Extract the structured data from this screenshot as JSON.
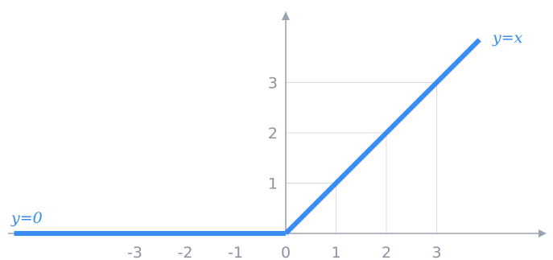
{
  "chart_data": {
    "type": "line",
    "x_ticks": [
      -3,
      -2,
      -1,
      0,
      1,
      2,
      3
    ],
    "x_tick_labels": [
      "-3",
      "-2",
      "-1",
      "0",
      "1",
      "2",
      "3"
    ],
    "y_ticks": [
      1,
      2,
      3
    ],
    "y_tick_labels": [
      "1",
      "2",
      "3"
    ],
    "xlim": [
      -5.4,
      5.15
    ],
    "ylim": [
      0,
      4.05
    ],
    "grid": false,
    "guide_points": [
      [
        1,
        1
      ],
      [
        2,
        2
      ],
      [
        3,
        3
      ]
    ],
    "series": [
      {
        "name": "y=0",
        "x": [
          -5.4,
          0
        ],
        "y": [
          0,
          0
        ]
      },
      {
        "name": "y=x",
        "x": [
          0,
          3.85
        ],
        "y": [
          0,
          3.85
        ]
      }
    ],
    "colors": {
      "series": "#3a8df0",
      "axis": "#9aa3b0",
      "guide": "#d7dbe1",
      "tick_text": "#8c93a0"
    }
  }
}
